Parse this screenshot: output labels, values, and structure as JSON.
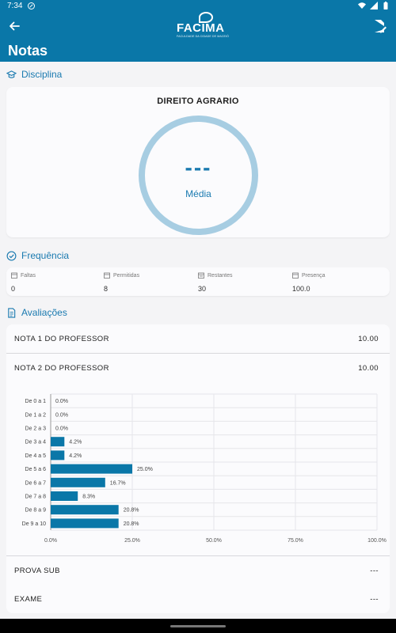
{
  "status_bar": {
    "time": "7:34"
  },
  "app_bar": {
    "logo_text": "FACIMA",
    "logo_tagline": "FACULDADE DA CIDADE DE MACEIÓ",
    "page_title": "Notas"
  },
  "disciplina": {
    "section_label": "Disciplina",
    "name": "DIREITO AGRARIO",
    "average_value": "---",
    "average_label": "Média"
  },
  "frequencia": {
    "section_label": "Frequência",
    "items": [
      {
        "label": "Faltas",
        "value": "0",
        "icon": "calendar-icon"
      },
      {
        "label": "Permitidas",
        "value": "8",
        "icon": "calendar-icon"
      },
      {
        "label": "Restantes",
        "value": "30",
        "icon": "calendar-list-icon"
      },
      {
        "label": "Presença",
        "value": "100.0",
        "icon": "calendar-icon"
      }
    ]
  },
  "avaliacoes": {
    "section_label": "Avaliações",
    "rows": [
      {
        "name": "NOTA 1 DO PROFESSOR",
        "score": "10.00"
      },
      {
        "name": "NOTA 2 DO PROFESSOR",
        "score": "10.00"
      },
      {
        "name": "PROVA SUB",
        "score": "---"
      },
      {
        "name": "EXAME",
        "score": "---"
      }
    ]
  },
  "chart_data": {
    "type": "bar",
    "orientation": "horizontal",
    "categories": [
      "De 0 a 1",
      "De 1 a 2",
      "De 2 a 3",
      "De 3 a 4",
      "De 4 a 5",
      "De 5 a 6",
      "De 6 a 7",
      "De 7 a 8",
      "De 8 a 9",
      "De 9 a 10"
    ],
    "values": [
      0.0,
      0.0,
      0.0,
      4.2,
      4.2,
      25.0,
      16.7,
      8.3,
      20.8,
      20.8
    ],
    "value_labels": [
      "0.0%",
      "0.0%",
      "0.0%",
      "4.2%",
      "4.2%",
      "25.0%",
      "16.7%",
      "8.3%",
      "20.8%",
      "20.8%"
    ],
    "xlim": [
      0,
      100
    ],
    "x_ticks": [
      "0.0%",
      "25.0%",
      "50.0%",
      "75.0%",
      "100.0%"
    ],
    "grid": true,
    "bar_color": "#0a77a8"
  },
  "colors": {
    "primary": "#0a77a8",
    "accent": "#1a7ab0",
    "ring": "#a7cde2"
  }
}
